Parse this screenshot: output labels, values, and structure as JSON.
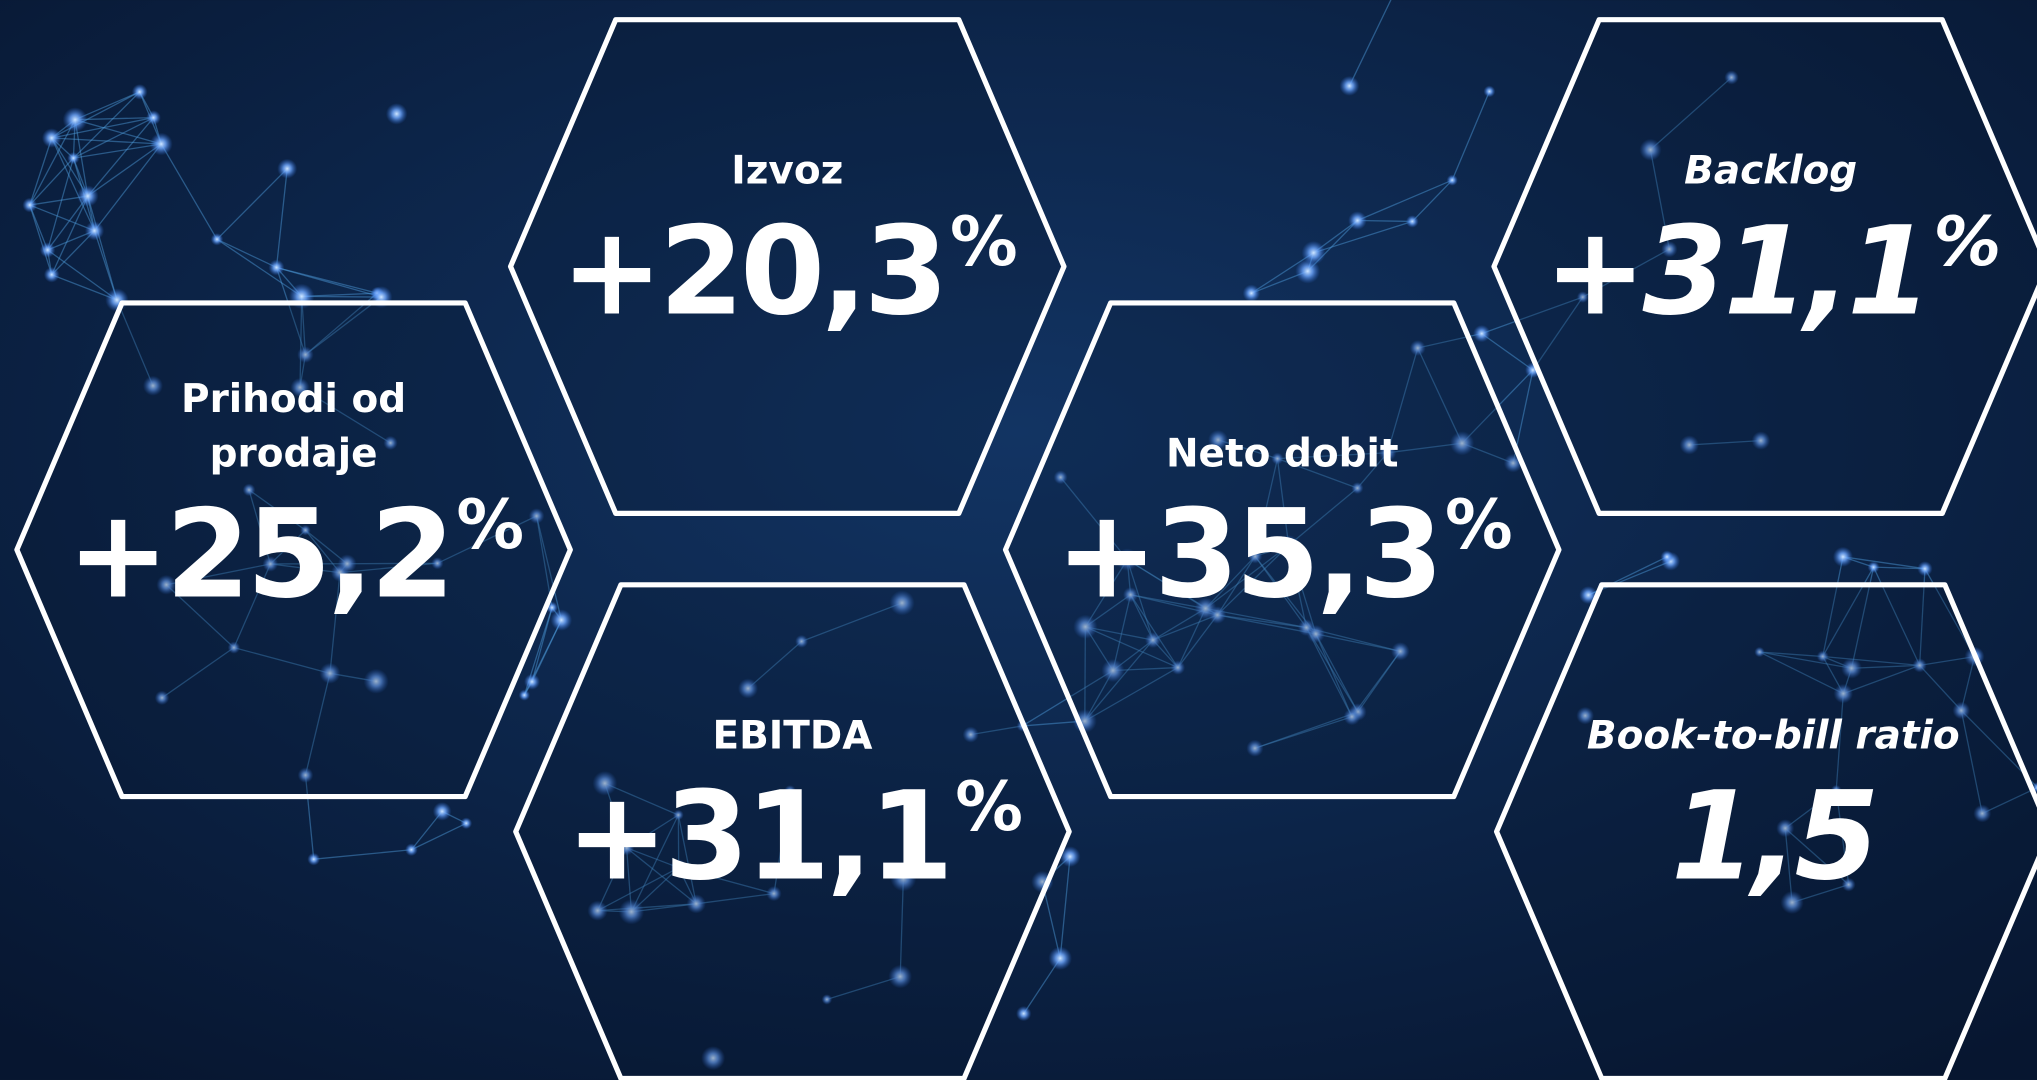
{
  "tiles": [
    {
      "label": [
        "Izvoz"
      ],
      "value": "+20,3",
      "suffix": "%",
      "italic": false
    },
    {
      "label": [
        "Prihodi od",
        "prodaje"
      ],
      "value": "+25,2",
      "suffix": "%",
      "italic": false
    },
    {
      "label": [
        "EBITDA"
      ],
      "value": "+31,1",
      "suffix": "%",
      "italic": false
    },
    {
      "label": [
        "Neto dobit"
      ],
      "value": "+35,3",
      "suffix": "%",
      "italic": false
    },
    {
      "label": [
        "Backlog"
      ],
      "value": "+31,1",
      "suffix": "%",
      "italic": true
    },
    {
      "label": [
        "Book-to-bill ratio"
      ],
      "value": "1,5",
      "italic": true
    }
  ]
}
